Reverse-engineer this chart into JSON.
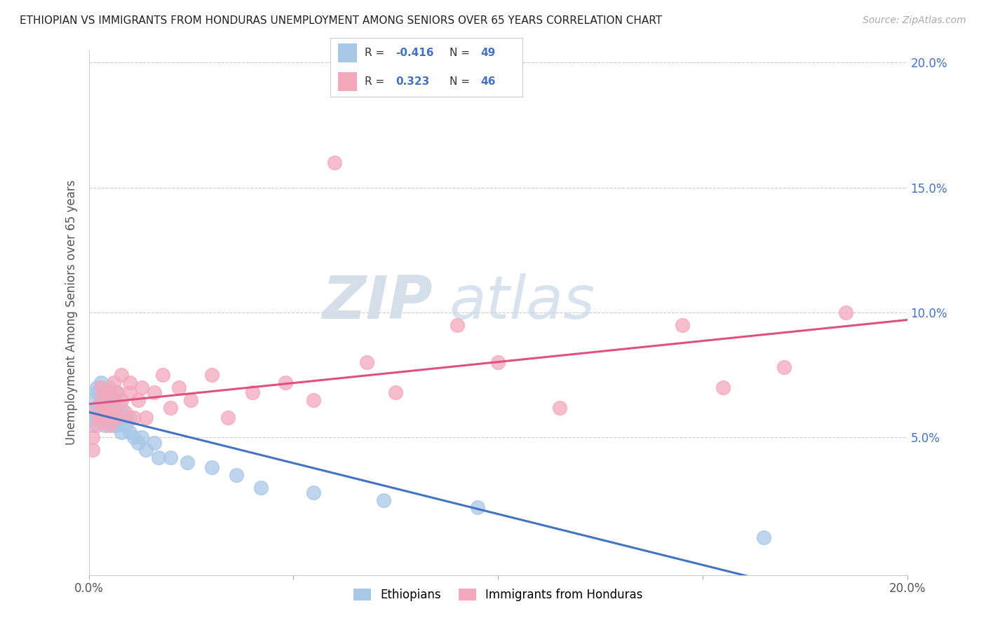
{
  "title": "ETHIOPIAN VS IMMIGRANTS FROM HONDURAS UNEMPLOYMENT AMONG SENIORS OVER 65 YEARS CORRELATION CHART",
  "source": "Source: ZipAtlas.com",
  "ylabel": "Unemployment Among Seniors over 65 years",
  "xlim": [
    0.0,
    0.2
  ],
  "ylim": [
    -0.005,
    0.205
  ],
  "yticks": [
    0.05,
    0.1,
    0.15,
    0.2
  ],
  "xticks": [
    0.0,
    0.05,
    0.1,
    0.15,
    0.2
  ],
  "blue_color": "#a8c8e8",
  "pink_color": "#f4a8bc",
  "blue_line_color": "#4472c4",
  "pink_line_color": "#e05080",
  "right_tick_color": "#4472c4",
  "ethiopians_x": [
    0.001,
    0.001,
    0.001,
    0.002,
    0.002,
    0.002,
    0.002,
    0.003,
    0.003,
    0.003,
    0.003,
    0.004,
    0.004,
    0.004,
    0.004,
    0.004,
    0.005,
    0.005,
    0.005,
    0.005,
    0.006,
    0.006,
    0.006,
    0.006,
    0.007,
    0.007,
    0.007,
    0.008,
    0.008,
    0.008,
    0.009,
    0.009,
    0.01,
    0.01,
    0.011,
    0.012,
    0.013,
    0.014,
    0.016,
    0.017,
    0.02,
    0.024,
    0.03,
    0.036,
    0.042,
    0.055,
    0.072,
    0.095,
    0.165
  ],
  "ethiopians_y": [
    0.065,
    0.06,
    0.055,
    0.068,
    0.062,
    0.058,
    0.07,
    0.065,
    0.058,
    0.062,
    0.072,
    0.06,
    0.065,
    0.055,
    0.058,
    0.068,
    0.062,
    0.058,
    0.065,
    0.07,
    0.06,
    0.055,
    0.065,
    0.058,
    0.055,
    0.06,
    0.068,
    0.058,
    0.052,
    0.062,
    0.055,
    0.058,
    0.052,
    0.058,
    0.05,
    0.048,
    0.05,
    0.045,
    0.048,
    0.042,
    0.042,
    0.04,
    0.038,
    0.035,
    0.03,
    0.028,
    0.025,
    0.022,
    0.01
  ],
  "honduras_x": [
    0.001,
    0.001,
    0.002,
    0.002,
    0.003,
    0.003,
    0.003,
    0.004,
    0.004,
    0.004,
    0.005,
    0.005,
    0.005,
    0.006,
    0.006,
    0.007,
    0.007,
    0.008,
    0.008,
    0.009,
    0.01,
    0.01,
    0.011,
    0.012,
    0.013,
    0.014,
    0.016,
    0.018,
    0.02,
    0.022,
    0.025,
    0.03,
    0.034,
    0.04,
    0.048,
    0.055,
    0.06,
    0.068,
    0.075,
    0.09,
    0.1,
    0.115,
    0.145,
    0.155,
    0.17,
    0.185
  ],
  "honduras_y": [
    0.05,
    0.045,
    0.055,
    0.06,
    0.058,
    0.065,
    0.07,
    0.058,
    0.062,
    0.068,
    0.055,
    0.06,
    0.068,
    0.062,
    0.072,
    0.058,
    0.068,
    0.065,
    0.075,
    0.06,
    0.068,
    0.072,
    0.058,
    0.065,
    0.07,
    0.058,
    0.068,
    0.075,
    0.062,
    0.07,
    0.065,
    0.075,
    0.058,
    0.068,
    0.072,
    0.065,
    0.16,
    0.08,
    0.068,
    0.095,
    0.08,
    0.062,
    0.095,
    0.07,
    0.078,
    0.1
  ]
}
